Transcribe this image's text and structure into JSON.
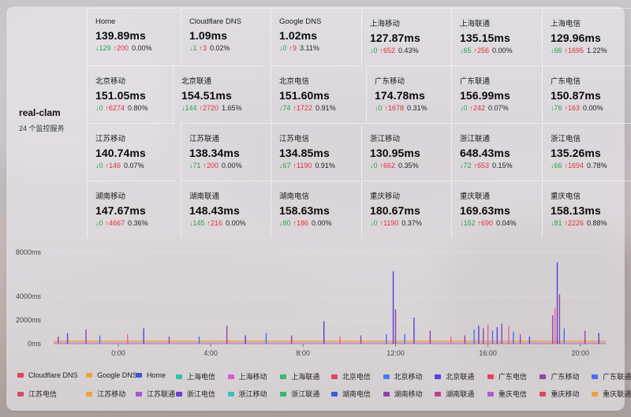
{
  "server": {
    "name": "real-clam",
    "subtitle": "24 个监控服务"
  },
  "rows": [
    [
      {
        "label": "Home",
        "value": "139.89ms",
        "down": "↓129",
        "up": "↑200",
        "loss": "0.00%"
      },
      {
        "label": "Cloudflare DNS",
        "value": "1.09ms",
        "down": "↓1",
        "up": "↑3",
        "loss": "0.02%"
      },
      {
        "label": "Google DNS",
        "value": "1.02ms",
        "down": "↓0",
        "up": "↑9",
        "loss": "3.11%"
      },
      {
        "label": "上海移动",
        "value": "127.87ms",
        "down": "↓0",
        "up": "↑652",
        "loss": "0.43%"
      },
      {
        "label": "上海联通",
        "value": "135.15ms",
        "down": "↓65",
        "up": "↑256",
        "loss": "0.00%"
      },
      {
        "label": "上海电信",
        "value": "129.96ms",
        "down": "↓66",
        "up": "↑1695",
        "loss": "1.22%"
      }
    ],
    [
      {
        "label": "北京移动",
        "value": "151.05ms",
        "down": "↓0",
        "up": "↑6274",
        "loss": "0.80%"
      },
      {
        "label": "北京联通",
        "value": "154.51ms",
        "down": "↓144",
        "up": "↑2720",
        "loss": "1.65%"
      },
      {
        "label": "北京电信",
        "value": "151.60ms",
        "down": "↓74",
        "up": "↑1722",
        "loss": "0.91%"
      },
      {
        "label": "广东移动",
        "value": "174.78ms",
        "down": "↓0",
        "up": "↑1678",
        "loss": "0.31%"
      },
      {
        "label": "广东联通",
        "value": "156.99ms",
        "down": "↓0",
        "up": "↑242",
        "loss": "0.07%"
      },
      {
        "label": "广东电信",
        "value": "150.87ms",
        "down": "↓76",
        "up": "↑163",
        "loss": "0.00%"
      }
    ],
    [
      {
        "label": "江苏移动",
        "value": "140.74ms",
        "down": "↓0",
        "up": "↑146",
        "loss": "0.07%"
      },
      {
        "label": "江苏联通",
        "value": "138.34ms",
        "down": "↓71",
        "up": "↑200",
        "loss": "0.00%"
      },
      {
        "label": "江苏电信",
        "value": "134.85ms",
        "down": "↓67",
        "up": "↑1190",
        "loss": "0.91%"
      },
      {
        "label": "浙江移动",
        "value": "130.95ms",
        "down": "↓0",
        "up": "↑662",
        "loss": "0.35%"
      },
      {
        "label": "浙江联通",
        "value": "648.43ms",
        "down": "↓72",
        "up": "↑653",
        "loss": "0.15%"
      },
      {
        "label": "浙江电信",
        "value": "135.26ms",
        "down": "↓66",
        "up": "↑1694",
        "loss": "0.78%"
      }
    ],
    [
      {
        "label": "湖南移动",
        "value": "147.67ms",
        "down": "↓0",
        "up": "↑4667",
        "loss": "0.36%"
      },
      {
        "label": "湖南联通",
        "value": "148.43ms",
        "down": "↓145",
        "up": "↑216",
        "loss": "0.00%"
      },
      {
        "label": "湖南电信",
        "value": "158.63ms",
        "down": "↓80",
        "up": "↑186",
        "loss": "0.00%"
      },
      {
        "label": "重庆移动",
        "value": "180.67ms",
        "down": "↓0",
        "up": "↑1190",
        "loss": "0.37%"
      },
      {
        "label": "重庆联通",
        "value": "169.63ms",
        "down": "↓152",
        "up": "↑690",
        "loss": "0.04%"
      },
      {
        "label": "重庆电信",
        "value": "158.13ms",
        "down": "↓81",
        "up": "↑2226",
        "loss": "0.88%"
      }
    ]
  ],
  "chart_data": {
    "type": "line",
    "xlabel": "",
    "ylabel": "",
    "x_ticks": [
      "0:00",
      "4:00",
      "8:00",
      "12:00",
      "16:00",
      "20:00"
    ],
    "x_tick_hours": [
      0,
      4,
      8,
      12,
      16,
      20
    ],
    "xlim_hours": [
      -2.8,
      21.1
    ],
    "y_ticks": [
      "8000ms",
      "4000ms",
      "2000ms",
      "0ms"
    ],
    "y_tick_values": [
      8000,
      4000,
      2000,
      0
    ],
    "ylim": [
      0,
      8000
    ],
    "baseline_ms": 150,
    "spikes": [
      {
        "hour": -2.6,
        "ms": 600,
        "color": "#8e44ad"
      },
      {
        "hour": -2.2,
        "ms": 900,
        "color": "#5b3fd6"
      },
      {
        "hour": -1.4,
        "ms": 1200,
        "color": "#8e44ad"
      },
      {
        "hour": -0.8,
        "ms": 700,
        "color": "#4a6cf7"
      },
      {
        "hour": 0.4,
        "ms": 800,
        "color": "#e85d9a"
      },
      {
        "hour": 1.1,
        "ms": 1300,
        "color": "#5b3fd6"
      },
      {
        "hour": 2.2,
        "ms": 600,
        "color": "#8e44ad"
      },
      {
        "hour": 3.5,
        "ms": 600,
        "color": "#4a6cf7"
      },
      {
        "hour": 4.7,
        "ms": 1500,
        "color": "#8e44ad"
      },
      {
        "hour": 5.5,
        "ms": 700,
        "color": "#5b3fd6"
      },
      {
        "hour": 6.4,
        "ms": 900,
        "color": "#4a6cf7"
      },
      {
        "hour": 7.5,
        "ms": 700,
        "color": "#8e44ad"
      },
      {
        "hour": 8.9,
        "ms": 1900,
        "color": "#5b3fd6"
      },
      {
        "hour": 9.6,
        "ms": 600,
        "color": "#e85d9a"
      },
      {
        "hour": 10.5,
        "ms": 700,
        "color": "#8e44ad"
      },
      {
        "hour": 11.6,
        "ms": 800,
        "color": "#4a6cf7"
      },
      {
        "hour": 11.9,
        "ms": 6300,
        "color": "#5b3fd6"
      },
      {
        "hour": 12.0,
        "ms": 2900,
        "color": "#8e44ad"
      },
      {
        "hour": 12.4,
        "ms": 800,
        "color": "#4a6cf7"
      },
      {
        "hour": 12.8,
        "ms": 2200,
        "color": "#5b3fd6"
      },
      {
        "hour": 13.5,
        "ms": 1100,
        "color": "#8e44ad"
      },
      {
        "hour": 14.4,
        "ms": 600,
        "color": "#e85d9a"
      },
      {
        "hour": 15.0,
        "ms": 700,
        "color": "#8e44ad"
      },
      {
        "hour": 15.4,
        "ms": 1200,
        "color": "#4a6cf7"
      },
      {
        "hour": 15.6,
        "ms": 1500,
        "color": "#5b3fd6"
      },
      {
        "hour": 15.8,
        "ms": 1300,
        "color": "#8e44ad"
      },
      {
        "hour": 16.0,
        "ms": 1600,
        "color": "#e85d9a"
      },
      {
        "hour": 16.2,
        "ms": 1100,
        "color": "#4a6cf7"
      },
      {
        "hour": 16.4,
        "ms": 1400,
        "color": "#5b3fd6"
      },
      {
        "hour": 16.6,
        "ms": 1700,
        "color": "#8e44ad"
      },
      {
        "hour": 16.9,
        "ms": 1500,
        "color": "#e85d9a"
      },
      {
        "hour": 17.1,
        "ms": 1000,
        "color": "#4a6cf7"
      },
      {
        "hour": 17.4,
        "ms": 800,
        "color": "#8e44ad"
      },
      {
        "hour": 17.8,
        "ms": 600,
        "color": "#5b3fd6"
      },
      {
        "hour": 18.8,
        "ms": 2400,
        "color": "#8e44ad"
      },
      {
        "hour": 18.9,
        "ms": 3000,
        "color": "#e85d9a"
      },
      {
        "hour": 19.0,
        "ms": 7100,
        "color": "#5b3fd6"
      },
      {
        "hour": 19.1,
        "ms": 4200,
        "color": "#8e44ad"
      },
      {
        "hour": 19.3,
        "ms": 1300,
        "color": "#4a6cf7"
      },
      {
        "hour": 20.2,
        "ms": 1100,
        "color": "#8e44ad"
      },
      {
        "hour": 20.8,
        "ms": 900,
        "color": "#5b3fd6"
      }
    ]
  },
  "legend": [
    [
      {
        "label": "Cloudflare DNS",
        "color": "#e8415a"
      },
      {
        "label": "Google DNS",
        "color": "#f0a23a"
      },
      {
        "label": "Home",
        "color": "#3a5bd9"
      },
      {
        "label": "上海电信",
        "color": "#2ec4a6"
      },
      {
        "label": "上海移动",
        "color": "#d05ad8"
      },
      {
        "label": "上海联通",
        "color": "#38b86a"
      },
      {
        "label": "北京电信",
        "color": "#e0455f"
      },
      {
        "label": "北京移动",
        "color": "#4a7be8"
      },
      {
        "label": "北京联通",
        "color": "#5b3fd6"
      },
      {
        "label": "广东电信",
        "color": "#e8415a"
      },
      {
        "label": "广东移动",
        "color": "#8e44ad"
      },
      {
        "label": "广东联通",
        "color": "#4a6cf7"
      }
    ],
    [
      {
        "label": "江苏电信",
        "color": "#e0455f"
      },
      {
        "label": "江苏移动",
        "color": "#f0a23a"
      },
      {
        "label": "江苏联通",
        "color": "#a05ad8"
      },
      {
        "label": "浙江电信",
        "color": "#6a3fd6"
      },
      {
        "label": "浙江移动",
        "color": "#2ec4c4"
      },
      {
        "label": "浙江联通",
        "color": "#38b86a"
      },
      {
        "label": "湖南电信",
        "color": "#3a5bd9"
      },
      {
        "label": "湖南移动",
        "color": "#8e44ad"
      },
      {
        "label": "湖南联通",
        "color": "#c0408a"
      },
      {
        "label": "重庆电信",
        "color": "#b05ad8"
      },
      {
        "label": "重庆移动",
        "color": "#e8415a"
      },
      {
        "label": "重庆联通",
        "color": "#f0a23a"
      }
    ]
  ]
}
